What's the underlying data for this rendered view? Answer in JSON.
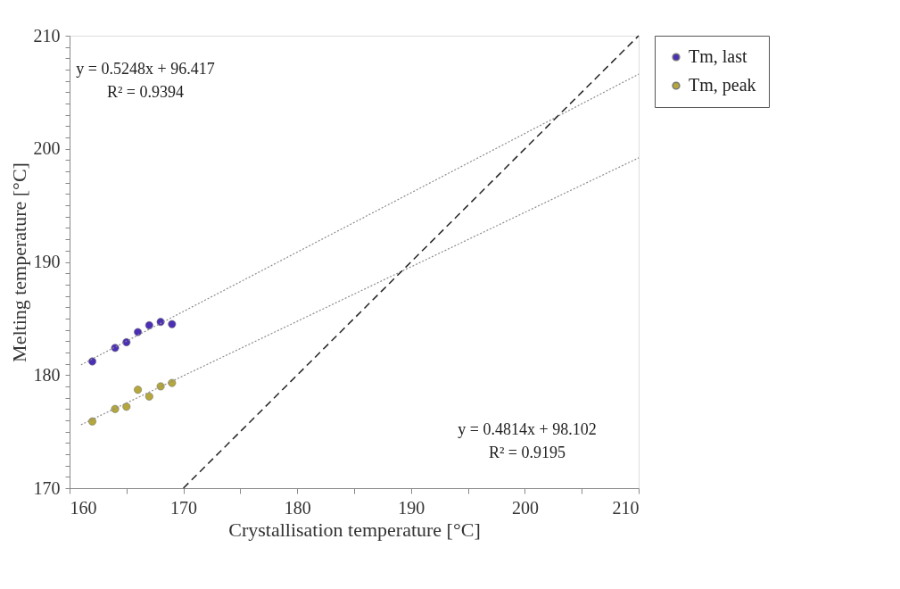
{
  "chart_data": {
    "type": "scatter",
    "xlabel": "Crystallisation temperature [°C]",
    "ylabel": "Melting temperature [°C]",
    "xlim": [
      160,
      210
    ],
    "ylim": [
      170,
      210
    ],
    "xticks": [
      160,
      {
        "value": 165,
        "label": null
      },
      170,
      {
        "value": 175,
        "label": null
      },
      180,
      {
        "value": 185,
        "label": null
      },
      190,
      {
        "value": 195,
        "label": null
      },
      200,
      {
        "value": 205,
        "label": null
      },
      210
    ],
    "yticks": [
      170,
      {
        "value": 171,
        "label": null
      },
      {
        "value": 172,
        "label": null
      },
      {
        "value": 173,
        "label": null
      },
      {
        "value": 174,
        "label": null
      },
      {
        "value": 175,
        "label": null
      },
      {
        "value": 176,
        "label": null
      },
      {
        "value": 177,
        "label": null
      },
      {
        "value": 178,
        "label": null
      },
      {
        "value": 179,
        "label": null
      },
      180,
      {
        "value": 181,
        "label": null
      },
      {
        "value": 182,
        "label": null
      },
      {
        "value": 183,
        "label": null
      },
      {
        "value": 184,
        "label": null
      },
      {
        "value": 185,
        "label": null
      },
      {
        "value": 186,
        "label": null
      },
      {
        "value": 187,
        "label": null
      },
      {
        "value": 188,
        "label": null
      },
      {
        "value": 189,
        "label": null
      },
      190,
      {
        "value": 191,
        "label": null
      },
      {
        "value": 192,
        "label": null
      },
      {
        "value": 193,
        "label": null
      },
      {
        "value": 194,
        "label": null
      },
      {
        "value": 195,
        "label": null
      },
      {
        "value": 196,
        "label": null
      },
      {
        "value": 197,
        "label": null
      },
      {
        "value": 198,
        "label": null
      },
      {
        "value": 199,
        "label": null
      },
      200,
      {
        "value": 201,
        "label": null
      },
      {
        "value": 202,
        "label": null
      },
      {
        "value": 203,
        "label": null
      },
      {
        "value": 204,
        "label": null
      },
      {
        "value": 205,
        "label": null
      },
      {
        "value": 206,
        "label": null
      },
      {
        "value": 207,
        "label": null
      },
      {
        "value": 208,
        "label": null
      },
      {
        "value": 209,
        "label": null
      },
      210
    ],
    "grid": false,
    "legend": "right",
    "x": [
      162,
      164,
      165,
      166,
      167,
      168,
      169
    ],
    "series": [
      {
        "name": "Tm, last",
        "color": "#4b2fb5",
        "marker": "circle",
        "values": [
          181.2,
          182.4,
          182.9,
          183.8,
          184.4,
          184.7,
          184.5
        ]
      },
      {
        "name": "Tm, peak",
        "color": "#b5a73a",
        "marker": "circle",
        "values": [
          175.9,
          177.0,
          177.2,
          178.7,
          178.1,
          179.0,
          179.3
        ]
      },
      {
        "type": "line",
        "color": "#8c8c8c",
        "line_style": "dotted",
        "marker": "none",
        "x": [
          161,
          210
        ],
        "values": [
          180.9,
          206.6
        ]
      },
      {
        "type": "line",
        "color": "#8c8c8c",
        "line_style": "dotted",
        "marker": "none",
        "x": [
          161,
          210
        ],
        "values": [
          175.6,
          199.2
        ]
      },
      {
        "type": "line",
        "color": "#222222",
        "line_style": "dashed",
        "marker": "none",
        "x": [
          170,
          210
        ],
        "values": [
          170,
          210
        ]
      }
    ],
    "annotations": [
      "y = 0.5248x + 96.417",
      "R² = 0.9394",
      "y = 0.4814x + 98.102",
      "R² = 0.9195"
    ]
  }
}
